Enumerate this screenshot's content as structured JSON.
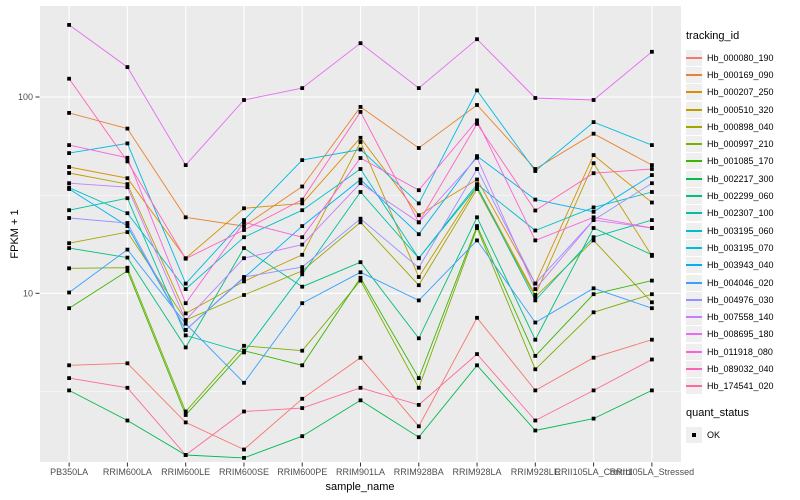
{
  "figure": {
    "y_axis": {
      "label": "FPKM + 1",
      "ticks": [
        "100",
        "10"
      ]
    },
    "x_axis": {
      "label": "sample_name"
    },
    "legend": {
      "tracking_title": "tracking_id",
      "quant_title": "quant_status",
      "quant_entries": [
        {
          "label": "OK",
          "shape": "filled-square",
          "color": "#000000"
        }
      ]
    },
    "style": {
      "panel_bg": "#EBEBEB",
      "grid_color": "#FFFFFF",
      "axis_text_color": "#4D4D4D",
      "tick_color": "#333333",
      "key_bg": "#EFEFEF",
      "point_color": "#000000"
    }
  },
  "chart_data": {
    "type": "line",
    "title": "",
    "xlabel": "sample_name",
    "ylabel": "FPKM + 1",
    "y_scale": "log10",
    "ylim": [
      1.38,
      290
    ],
    "y_major_breaks": [
      100,
      10
    ],
    "y_minor_breaks": [
      31.6,
      3.16
    ],
    "grid": true,
    "legend_position": "right",
    "point_shape": "filled-black-square",
    "categories": [
      "PB350LA",
      "RRIM600LA",
      "RRIM600LE",
      "RRIM600SE",
      "RRIM600PE",
      "RRIM901LA",
      "RRIM928BA",
      "RRIM928LA",
      "RRIM928LE",
      "RRII105LA_Control",
      "RRII105LA_Stressed"
    ],
    "series": [
      {
        "name": "Hb_000080_190",
        "color": "#F8766D",
        "values": [
          4.3,
          4.4,
          2.2,
          1.6,
          2.9,
          4.7,
          2.1,
          7.5,
          3.2,
          4.7,
          5.8
        ]
      },
      {
        "name": "Hb_000169_090",
        "color": "#EA8331",
        "values": [
          83,
          69,
          24.4,
          22,
          35,
          89,
          55,
          91,
          43,
          65,
          45
        ]
      },
      {
        "name": "Hb_000207_250",
        "color": "#D89000",
        "values": [
          44,
          38.6,
          15.1,
          27.1,
          28.7,
          62,
          25,
          38,
          11.2,
          50.6,
          29
        ]
      },
      {
        "name": "Hb_000510_320",
        "color": "#C09B00",
        "values": [
          41,
          36,
          7.9,
          11.5,
          15.7,
          59,
          12.1,
          35,
          9.8,
          46,
          15.5
        ]
      },
      {
        "name": "Hb_000898_040",
        "color": "#A3A500",
        "values": [
          18,
          20.5,
          7.3,
          9.8,
          13,
          23,
          11,
          34,
          9.6,
          18.6,
          9.0
        ]
      },
      {
        "name": "Hb_000997_210",
        "color": "#7CAE00",
        "values": [
          13.4,
          13.5,
          2.5,
          5.4,
          5.1,
          11.6,
          3.3,
          21.5,
          4.1,
          8.0,
          9.9
        ]
      },
      {
        "name": "Hb_001085_170",
        "color": "#39B600",
        "values": [
          8.4,
          13.0,
          2.4,
          5.1,
          4.3,
          12.0,
          3.7,
          22,
          4.8,
          9.9,
          11.6
        ]
      },
      {
        "name": "Hb_002217_300",
        "color": "#00BB4E",
        "values": [
          3.2,
          2.25,
          1.5,
          1.45,
          1.87,
          2.85,
          1.85,
          4.3,
          2.0,
          2.3,
          3.2
        ]
      },
      {
        "name": "Hb_002299_060",
        "color": "#00BF7D",
        "values": [
          17,
          15.2,
          5.3,
          17,
          10.8,
          14.4,
          5.9,
          24.4,
          5.8,
          21.5,
          15.7
        ]
      },
      {
        "name": "Hb_002307_100",
        "color": "#00C1A3",
        "values": [
          26.5,
          30.5,
          6.1,
          5.0,
          12.5,
          32.8,
          15.1,
          35,
          9.2,
          19.3,
          23.6
        ]
      },
      {
        "name": "Hb_003195_060",
        "color": "#00BFC4",
        "values": [
          34.5,
          25.6,
          10.5,
          19.3,
          26.5,
          43,
          15.1,
          36,
          20.9,
          27.4,
          32.8
        ]
      },
      {
        "name": "Hb_003195_070",
        "color": "#00BAE0",
        "values": [
          51.8,
          58,
          11.2,
          23.6,
          47.7,
          54,
          28.7,
          108,
          42,
          74.5,
          56.9
        ]
      },
      {
        "name": "Hb_003943_040",
        "color": "#00B0F6",
        "values": [
          34,
          22,
          6.5,
          12,
          22,
          38,
          20,
          50,
          30,
          26,
          40
        ]
      },
      {
        "name": "Hb_004046_020",
        "color": "#35A2FF",
        "values": [
          10.1,
          16.7,
          7.0,
          3.5,
          8.9,
          12.8,
          9.2,
          18.6,
          7.1,
          10.6,
          8.4
        ]
      },
      {
        "name": "Hb_004976_030",
        "color": "#9590FF",
        "values": [
          24.2,
          22.8,
          6.5,
          12.1,
          13.6,
          24,
          13.5,
          43,
          11.2,
          23.6,
          36.4
        ]
      },
      {
        "name": "Hb_007558_140",
        "color": "#C77CFF",
        "values": [
          36.4,
          34.7,
          7.3,
          15.1,
          17.7,
          36.4,
          23,
          49,
          10.5,
          23.6,
          21.5
        ]
      },
      {
        "name": "Hb_008695_180",
        "color": "#E76BF3",
        "values": [
          233,
          142,
          45,
          96.5,
          111,
          188,
          111,
          197,
          98.8,
          96.5,
          170
        ]
      },
      {
        "name": "Hb_011918_080",
        "color": "#FA62DB",
        "values": [
          56.9,
          49,
          8.9,
          23,
          19.3,
          48.9,
          33.5,
          76,
          18.6,
          24.4,
          21.5
        ]
      },
      {
        "name": "Hb_089032_040",
        "color": "#FF62BC",
        "values": [
          124,
          47,
          15,
          21,
          30,
          84,
          23,
          73,
          26.4,
          40.9,
          43
        ]
      },
      {
        "name": "Hb_174541_020",
        "color": "#FF6A98",
        "values": [
          3.7,
          3.3,
          1.5,
          2.5,
          2.6,
          3.3,
          2.7,
          4.9,
          2.25,
          3.2,
          4.6
        ]
      }
    ]
  }
}
